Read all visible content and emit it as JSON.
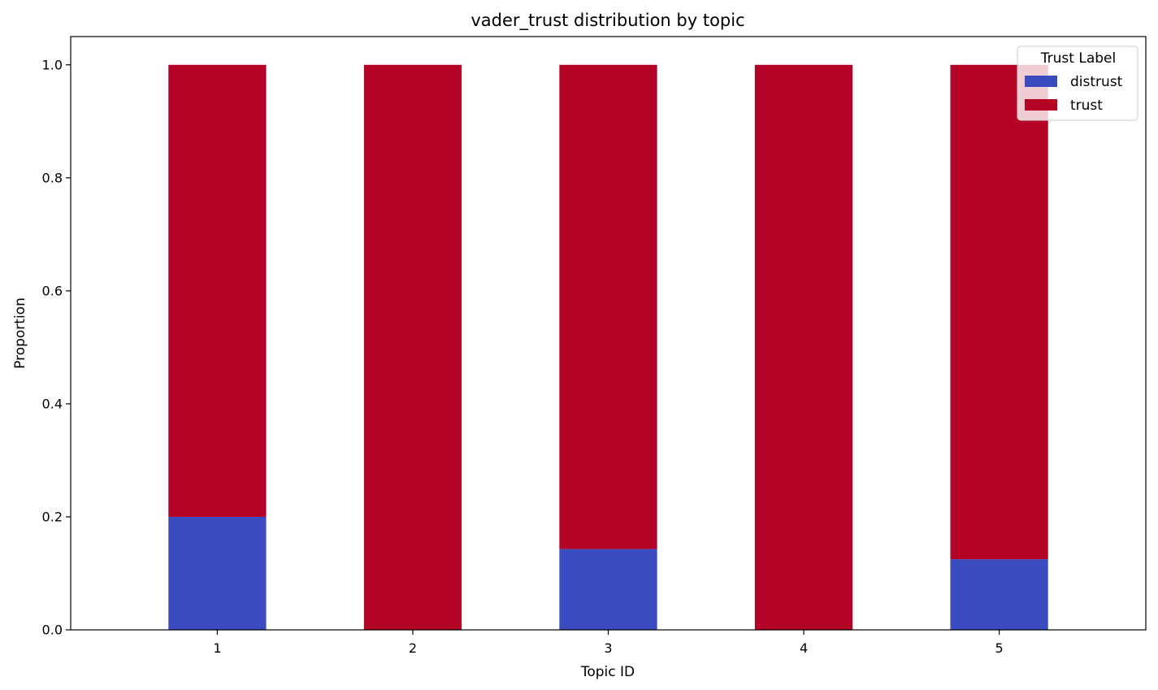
{
  "chart_data": {
    "type": "bar",
    "stacked": true,
    "title": "vader_trust distribution by topic",
    "xlabel": "Topic ID",
    "ylabel": "Proportion",
    "categories": [
      "1",
      "2",
      "3",
      "4",
      "5"
    ],
    "series": [
      {
        "name": "distrust",
        "color": "#3b4cc0",
        "values": [
          0.2,
          0.0,
          0.143,
          0.0,
          0.125
        ]
      },
      {
        "name": "trust",
        "color": "#b40426",
        "values": [
          0.8,
          1.0,
          0.857,
          1.0,
          0.875
        ]
      }
    ],
    "ylim": [
      0,
      1.05
    ],
    "yticks": [
      "0.0",
      "0.2",
      "0.4",
      "0.6",
      "0.8",
      "1.0"
    ],
    "grid": false,
    "legend": {
      "title": "Trust Label",
      "placement": "top-right"
    }
  }
}
